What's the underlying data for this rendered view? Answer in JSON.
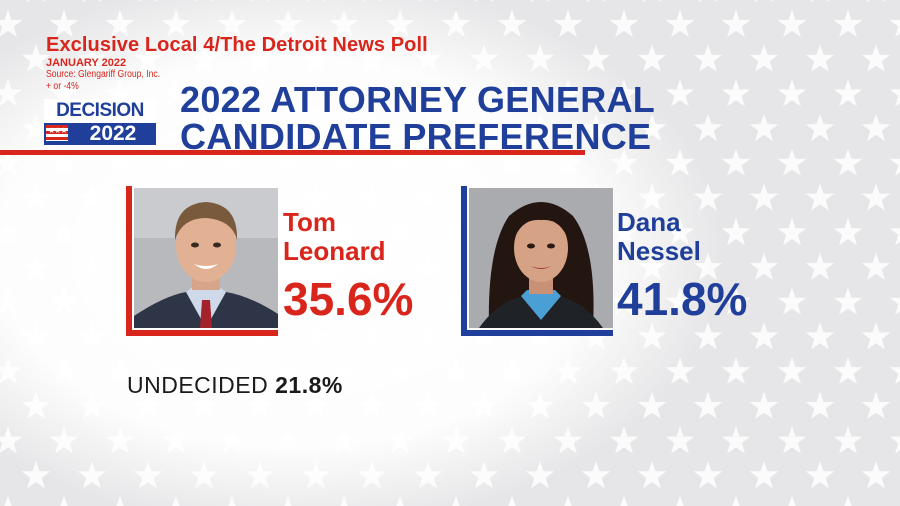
{
  "poll": {
    "title": "Exclusive Local 4/The Detroit News Poll",
    "date": "JANUARY 2022",
    "source": "Source: Glengariff Group, Inc.",
    "margin": "+ or -4%"
  },
  "logo": {
    "line1": "DECISION",
    "line2": "2022",
    "stars": "★★★"
  },
  "headline": {
    "line1": "2022 ATTORNEY GENERAL",
    "line2": "CANDIDATE PREFERENCE"
  },
  "colors": {
    "republican": "#d9261c",
    "democrat": "#1f3f9a",
    "background": "#e9e9ea"
  },
  "candidates": [
    {
      "first": "Tom",
      "last": "Leonard",
      "pct_label": "35.6%",
      "color": "#d9261c"
    },
    {
      "first": "Dana",
      "last": "Nessel",
      "pct_label": "41.8%",
      "color": "#1f3f9a"
    }
  ],
  "undecided": {
    "label": "UNDECIDED",
    "pct_label": "21.8%"
  },
  "chart_data": {
    "type": "table",
    "title": "2022 ATTORNEY GENERAL CANDIDATE PREFERENCE",
    "categories": [
      "Tom Leonard",
      "Dana Nessel",
      "UNDECIDED"
    ],
    "values": [
      35.6,
      41.8,
      21.8
    ],
    "unit": "%"
  }
}
